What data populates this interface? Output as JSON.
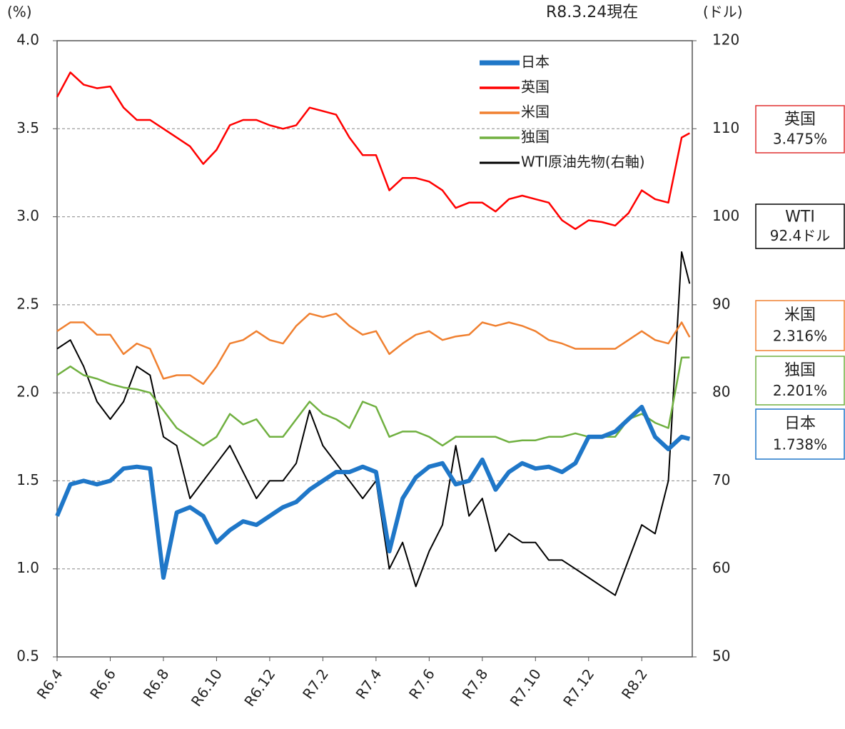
{
  "chart_data": {
    "type": "line",
    "left_unit": "(%)",
    "right_unit": "(ドル)",
    "date_note": "R8.3.24現在",
    "x": [
      0,
      0.5,
      1,
      1.5,
      2,
      2.5,
      3,
      3.5,
      4,
      4.5,
      5,
      5.5,
      6,
      6.5,
      7,
      7.5,
      8,
      8.5,
      9,
      9.5,
      10,
      10.5,
      11,
      11.5,
      12,
      12.5,
      13,
      13.5,
      14,
      14.5,
      15,
      15.5,
      16,
      16.5,
      17,
      17.5,
      18,
      18.5,
      19,
      19.5,
      20,
      20.5,
      21,
      21.5,
      22,
      22.5,
      23,
      23.5,
      23.8
    ],
    "xlim": [
      0,
      23.9
    ],
    "xticks": [
      {
        "value": 0,
        "label": "R6.4"
      },
      {
        "value": 2,
        "label": "R6.6"
      },
      {
        "value": 4,
        "label": "R6.8"
      },
      {
        "value": 6,
        "label": "R6.10"
      },
      {
        "value": 8,
        "label": "R6.12"
      },
      {
        "value": 10,
        "label": "R7.2"
      },
      {
        "value": 12,
        "label": "R7.4"
      },
      {
        "value": 14,
        "label": "R7.6"
      },
      {
        "value": 16,
        "label": "R7.8"
      },
      {
        "value": 18,
        "label": "R7.10"
      },
      {
        "value": 20,
        "label": "R7.12"
      },
      {
        "value": 22,
        "label": "R8.2"
      }
    ],
    "ylim": [
      0.5,
      4.0
    ],
    "yticks": [
      0.5,
      {
        "value": 1,
        "label": "1.0"
      },
      1.5,
      {
        "value": 2,
        "label": "2.0"
      },
      2.5,
      {
        "value": 3,
        "label": "3.0"
      },
      3.5,
      {
        "value": 4,
        "label": "4.0"
      }
    ],
    "y2lim": [
      50,
      120
    ],
    "y2ticks": [
      50,
      60,
      70,
      80,
      90,
      100,
      110,
      120
    ],
    "grid": true,
    "series": [
      {
        "name": "日本",
        "color": "#1f77c8",
        "values": [
          1.3,
          1.48,
          1.5,
          1.48,
          1.5,
          1.57,
          1.58,
          1.57,
          0.95,
          1.32,
          1.35,
          1.3,
          1.15,
          1.22,
          1.27,
          1.25,
          1.3,
          1.35,
          1.38,
          1.45,
          1.5,
          1.55,
          1.55,
          1.58,
          1.55,
          1.1,
          1.4,
          1.52,
          1.58,
          1.6,
          1.48,
          1.5,
          1.62,
          1.45,
          1.55,
          1.6,
          1.57,
          1.58,
          1.55,
          1.6,
          1.75,
          1.75,
          1.78,
          1.85,
          1.92,
          1.75,
          1.68,
          1.75,
          1.738
        ]
      },
      {
        "name": "英国",
        "color": "#ff0000",
        "values": [
          3.68,
          3.82,
          3.75,
          3.73,
          3.74,
          3.62,
          3.55,
          3.55,
          3.5,
          3.45,
          3.4,
          3.3,
          3.38,
          3.52,
          3.55,
          3.55,
          3.52,
          3.5,
          3.52,
          3.62,
          3.6,
          3.58,
          3.45,
          3.35,
          3.35,
          3.15,
          3.22,
          3.22,
          3.2,
          3.15,
          3.05,
          3.08,
          3.08,
          3.03,
          3.1,
          3.12,
          3.1,
          3.08,
          2.98,
          2.93,
          2.98,
          2.97,
          2.95,
          3.02,
          3.15,
          3.1,
          3.08,
          3.45,
          3.475
        ]
      },
      {
        "name": "米国",
        "color": "#f08030",
        "values": [
          2.35,
          2.4,
          2.4,
          2.33,
          2.33,
          2.22,
          2.28,
          2.25,
          2.08,
          2.1,
          2.1,
          2.05,
          2.15,
          2.28,
          2.3,
          2.35,
          2.3,
          2.28,
          2.38,
          2.45,
          2.43,
          2.45,
          2.38,
          2.33,
          2.35,
          2.22,
          2.28,
          2.33,
          2.35,
          2.3,
          2.32,
          2.33,
          2.4,
          2.38,
          2.4,
          2.38,
          2.35,
          2.3,
          2.28,
          2.25,
          2.25,
          2.25,
          2.25,
          2.3,
          2.35,
          2.3,
          2.28,
          2.4,
          2.316
        ]
      },
      {
        "name": "独国",
        "color": "#70b040",
        "values": [
          2.1,
          2.15,
          2.1,
          2.08,
          2.05,
          2.03,
          2.02,
          2.0,
          1.9,
          1.8,
          1.75,
          1.7,
          1.75,
          1.88,
          1.82,
          1.85,
          1.75,
          1.75,
          1.85,
          1.95,
          1.88,
          1.85,
          1.8,
          1.95,
          1.92,
          1.75,
          1.78,
          1.78,
          1.75,
          1.7,
          1.75,
          1.75,
          1.75,
          1.75,
          1.72,
          1.73,
          1.73,
          1.75,
          1.75,
          1.77,
          1.75,
          1.75,
          1.75,
          1.85,
          1.88,
          1.83,
          1.8,
          2.2,
          2.201
        ]
      },
      {
        "name": "WTI原油先物(右軸)",
        "color": "#000000",
        "axis": "y2",
        "values": [
          85,
          86,
          83,
          79,
          77,
          79,
          83,
          82,
          75,
          74,
          68,
          70,
          72,
          74,
          71,
          68,
          70,
          70,
          72,
          78,
          74,
          72,
          70,
          68,
          70,
          60,
          63,
          58,
          62,
          65,
          74,
          66,
          68,
          62,
          64,
          63,
          63,
          61,
          61,
          60,
          59,
          58,
          57,
          61,
          65,
          64,
          70,
          96,
          92.4
        ]
      }
    ],
    "annotations": [
      {
        "name": "英国",
        "value": "3.475%",
        "color": "#e03030"
      },
      {
        "name": "WTI",
        "value": "92.4ドル",
        "color": "#000000"
      },
      {
        "name": "米国",
        "value": "2.316%",
        "color": "#f08030"
      },
      {
        "name": "独国",
        "value": "2.201%",
        "color": "#70b040"
      },
      {
        "name": "日本",
        "value": "1.738%",
        "color": "#1f77c8"
      }
    ]
  }
}
